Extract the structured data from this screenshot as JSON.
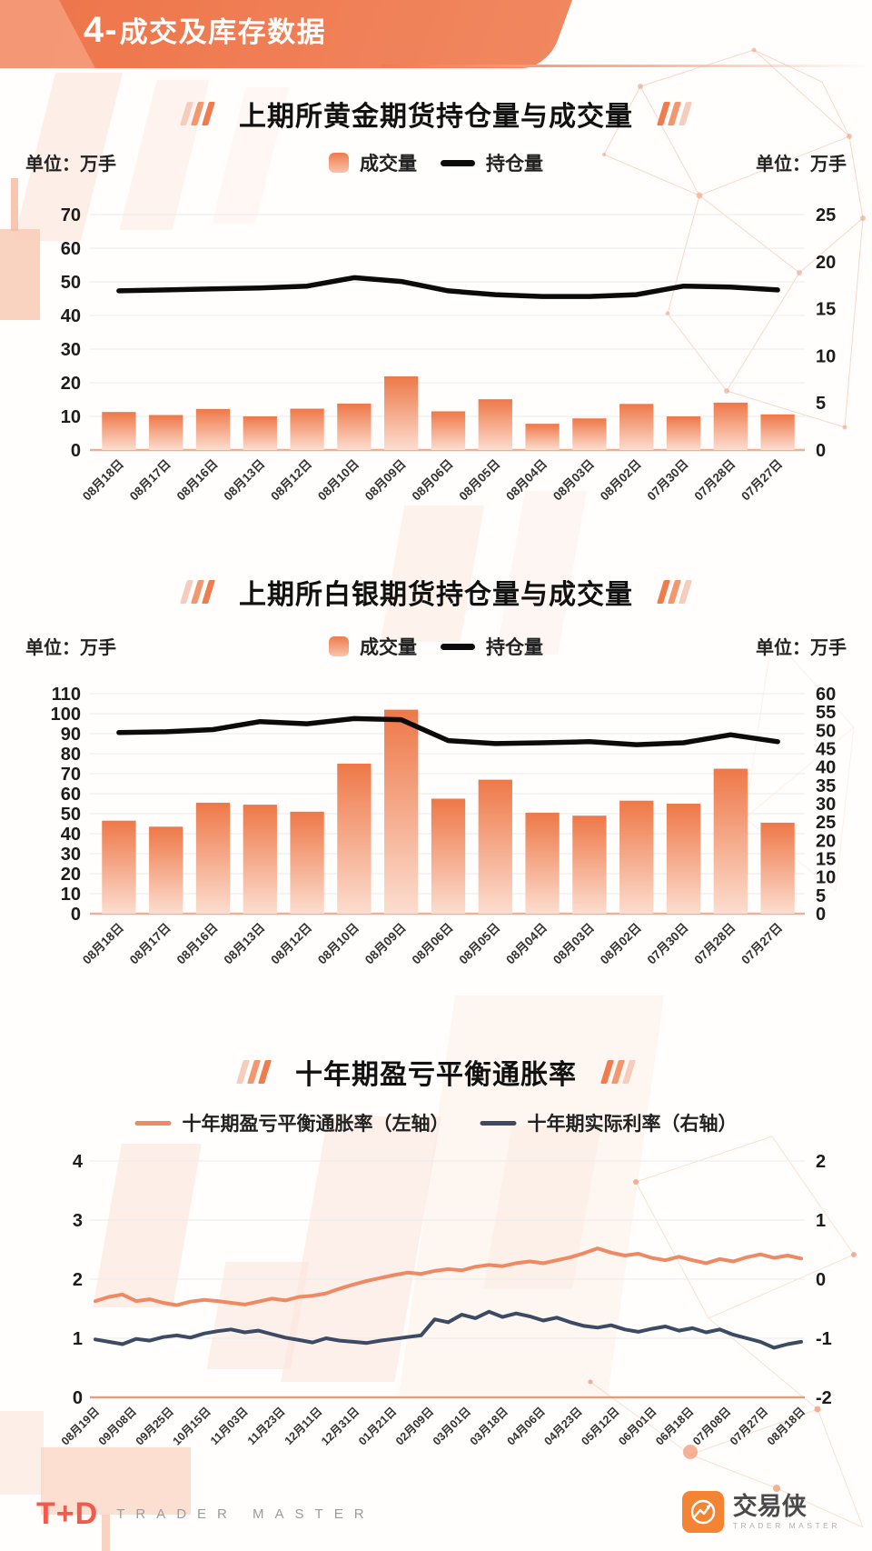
{
  "header": {
    "number": "4-",
    "title": "成交及库存数据",
    "accent_color": "#f07b52"
  },
  "chart_data": [
    {
      "type": "bar+line",
      "title": "上期所黄金期货持仓量与成交量",
      "unit_left": "单位：万手",
      "unit_right": "单位：万手",
      "categories": [
        "08月18日",
        "08月17日",
        "08月16日",
        "08月13日",
        "08月12日",
        "08月10日",
        "08月09日",
        "08月06日",
        "08月05日",
        "08月04日",
        "08月03日",
        "08月02日",
        "07月30日",
        "07月28日",
        "07月27日"
      ],
      "series": [
        {
          "name": "成交量",
          "type": "bar",
          "axis": "left",
          "values": [
            11.3,
            10.4,
            12.2,
            10.0,
            12.3,
            13.8,
            21.9,
            11.5,
            15.1,
            7.8,
            9.4,
            13.7,
            10.0,
            14.1,
            10.6
          ]
        },
        {
          "name": "持仓量",
          "type": "line",
          "axis": "right",
          "values": [
            16.9,
            17.0,
            17.1,
            17.2,
            17.4,
            18.3,
            17.9,
            16.9,
            16.5,
            16.3,
            16.3,
            16.5,
            17.4,
            17.3,
            17.0
          ]
        }
      ],
      "left_axis": {
        "min": 0,
        "max": 70,
        "step": 10
      },
      "right_axis": {
        "min": 0,
        "max": 25,
        "step": 5
      },
      "grid": true,
      "legend_position": "top-center",
      "colors": {
        "bar_top": "#ee7848",
        "bar_bottom": "#fcddcf",
        "line": "#0b0b0b"
      }
    },
    {
      "type": "bar+line",
      "title": "上期所白银期货持仓量与成交量",
      "unit_left": "单位：万手",
      "unit_right": "单位：万手",
      "categories": [
        "08月18日",
        "08月17日",
        "08月16日",
        "08月13日",
        "08月12日",
        "08月10日",
        "08月09日",
        "08月06日",
        "08月05日",
        "08月04日",
        "08月03日",
        "08月02日",
        "07月30日",
        "07月28日",
        "07月27日"
      ],
      "series": [
        {
          "name": "成交量",
          "type": "bar",
          "axis": "left",
          "values": [
            46.5,
            43.5,
            55.5,
            54.5,
            51.0,
            75.0,
            102.0,
            57.5,
            67.0,
            50.5,
            49.0,
            56.5,
            55.0,
            72.5,
            45.5
          ]
        },
        {
          "name": "持仓量",
          "type": "line",
          "axis": "right",
          "values": [
            49.4,
            49.6,
            50.2,
            52.4,
            51.8,
            53.2,
            52.9,
            47.2,
            46.4,
            46.6,
            46.9,
            46.1,
            46.6,
            48.8,
            46.9
          ]
        }
      ],
      "left_axis": {
        "min": 0,
        "max": 110,
        "step": 10
      },
      "right_axis": {
        "min": 0,
        "max": 60,
        "step": 5
      },
      "grid": true,
      "legend_position": "top-center",
      "colors": {
        "bar_top": "#ee7848",
        "bar_bottom": "#fcddcf",
        "line": "#0b0b0b"
      }
    },
    {
      "type": "line",
      "title": "十年期盈亏平衡通胀率",
      "x_labels": [
        "08月19日",
        "09月08日",
        "09月25日",
        "10月15日",
        "11月03日",
        "11月23日",
        "12月11日",
        "12月31日",
        "01月21日",
        "02月09日",
        "03月01日",
        "03月18日",
        "04月06日",
        "04月23日",
        "05月12日",
        "06月01日",
        "06月18日",
        "07月08日",
        "07月27日",
        "08月18日"
      ],
      "series": [
        {
          "name": "十年期盈亏平衡通胀率（左轴）",
          "axis": "left",
          "color": "#ed8a63",
          "values": [
            1.63,
            1.7,
            1.74,
            1.63,
            1.66,
            1.6,
            1.56,
            1.62,
            1.65,
            1.63,
            1.6,
            1.57,
            1.62,
            1.67,
            1.64,
            1.7,
            1.72,
            1.76,
            1.84,
            1.91,
            1.97,
            2.02,
            2.07,
            2.11,
            2.09,
            2.14,
            2.17,
            2.15,
            2.21,
            2.24,
            2.22,
            2.27,
            2.3,
            2.27,
            2.32,
            2.37,
            2.44,
            2.52,
            2.45,
            2.4,
            2.43,
            2.36,
            2.32,
            2.38,
            2.32,
            2.27,
            2.34,
            2.3,
            2.37,
            2.42,
            2.36,
            2.4,
            2.35
          ]
        },
        {
          "name": "十年期实际利率（右轴）",
          "axis": "right",
          "color": "#3c4b63",
          "values": [
            -1.02,
            -1.06,
            -1.1,
            -1.01,
            -1.04,
            -0.98,
            -0.95,
            -0.99,
            -0.92,
            -0.88,
            -0.85,
            -0.9,
            -0.87,
            -0.93,
            -0.99,
            -1.03,
            -1.07,
            -1.0,
            -1.04,
            -1.06,
            -1.08,
            -1.04,
            -1.01,
            -0.98,
            -0.95,
            -0.68,
            -0.73,
            -0.6,
            -0.66,
            -0.55,
            -0.64,
            -0.58,
            -0.63,
            -0.7,
            -0.65,
            -0.73,
            -0.79,
            -0.82,
            -0.78,
            -0.85,
            -0.89,
            -0.84,
            -0.8,
            -0.87,
            -0.83,
            -0.9,
            -0.85,
            -0.94,
            -1.0,
            -1.06,
            -1.16,
            -1.1,
            -1.06
          ]
        }
      ],
      "left_axis": {
        "min": 0,
        "max": 4,
        "step": 1
      },
      "right_axis": {
        "min": -2,
        "max": 2,
        "step": 1
      },
      "grid": true,
      "legend_position": "top-center"
    }
  ],
  "footer": {
    "td": "T+D",
    "trader_master": "TRADER MASTER",
    "app_name": "交易侠",
    "app_sub": "TRADER MASTER"
  }
}
